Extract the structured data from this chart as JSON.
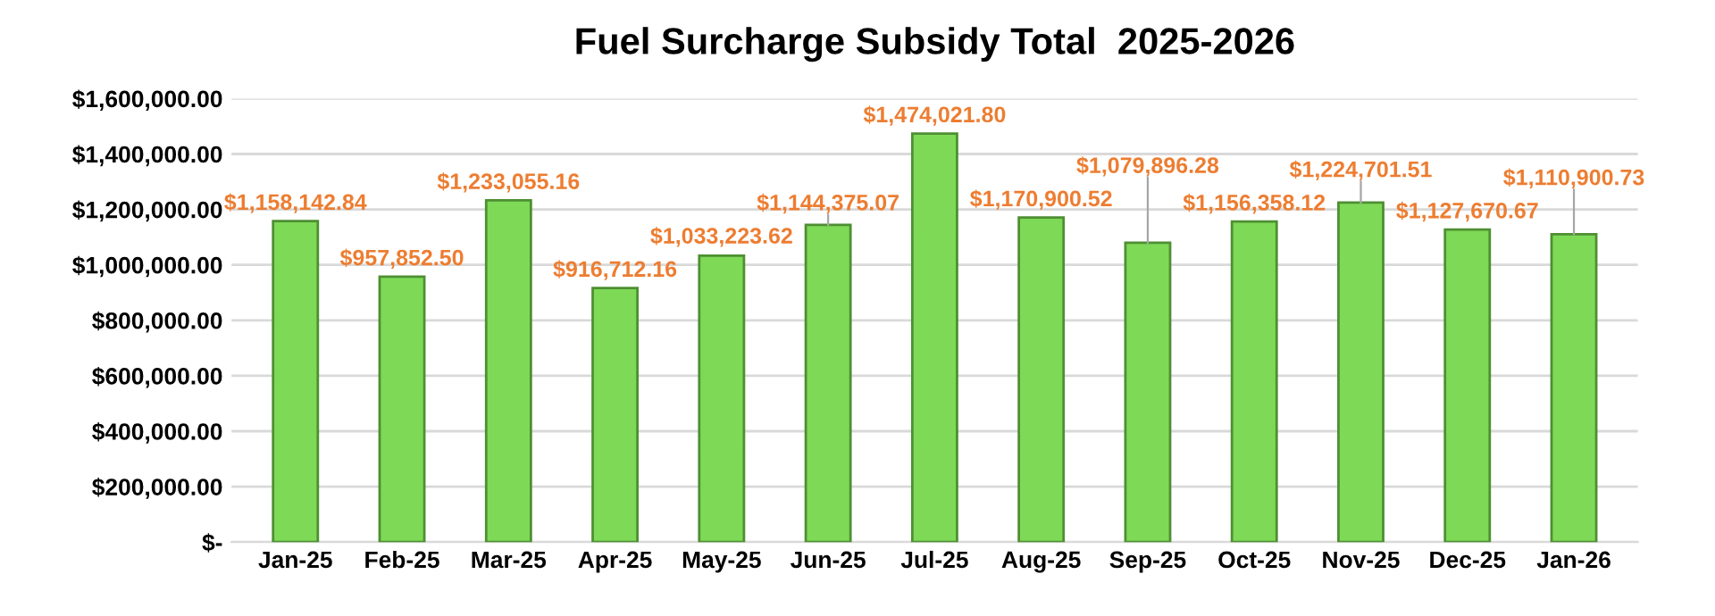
{
  "chart_data": {
    "type": "bar",
    "title": "Fuel Surcharge Subsidy Total  2025-2026",
    "categories": [
      "Jan-25",
      "Feb-25",
      "Mar-25",
      "Apr-25",
      "May-25",
      "Jun-25",
      "Jul-25",
      "Aug-25",
      "Sep-25",
      "Oct-25",
      "Nov-25",
      "Dec-25",
      "Jan-26"
    ],
    "values": [
      1158142.84,
      957852.5,
      1233055.16,
      916712.16,
      1033223.62,
      1144375.07,
      1474021.8,
      1170900.52,
      1079896.28,
      1156358.12,
      1224701.51,
      1127670.67,
      1110900.73
    ],
    "value_labels": [
      "$1,158,142.84",
      "$957,852.50",
      "$1,233,055.16",
      "$916,712.16",
      "$1,033,223.62",
      "$1,144,375.07",
      "$1,474,021.80",
      "$1,170,900.52",
      "$1,079,896.28",
      "$1,156,358.12",
      "$1,224,701.51",
      "$1,127,670.67",
      "$1,110,900.73"
    ],
    "color": "#7ed957",
    "ylim": [
      0,
      1600000
    ],
    "yticks": [
      {
        "value": 0,
        "label": "$-"
      },
      {
        "value": 200000,
        "label": "$200,000.00"
      },
      {
        "value": 400000,
        "label": "$400,000.00"
      },
      {
        "value": 600000,
        "label": "$600,000.00"
      },
      {
        "value": 800000,
        "label": "$800,000.00"
      },
      {
        "value": 1000000,
        "label": "$1,000,000.00"
      },
      {
        "value": 1200000,
        "label": "$1,200,000.00"
      },
      {
        "value": 1400000,
        "label": "$1,400,000.00"
      },
      {
        "value": 1600000,
        "label": "$1,600,000.00"
      }
    ],
    "grid": "y"
  }
}
